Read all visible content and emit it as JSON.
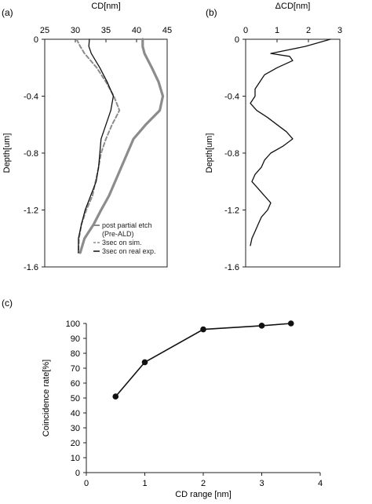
{
  "chart_data": [
    {
      "panel": "(a)",
      "type": "line",
      "xlabel": "CD[nm]",
      "ylabel": "Depth[um]",
      "xlim": [
        25,
        45
      ],
      "ylim": [
        -1.6,
        0
      ],
      "xticks": [
        25,
        30,
        35,
        40,
        45
      ],
      "yticks": [
        0,
        -0.4,
        -0.8,
        -1.2,
        -1.6
      ],
      "yticklabels": [
        "0",
        "-0.4",
        "-0.8",
        "-1.2",
        "-1.6"
      ],
      "grid": false,
      "legend_position": "bottom-right",
      "series": [
        {
          "name": "post partial etch\n(Pre-ALD)",
          "color": "#8c8c8c",
          "style": "solid-thick",
          "points": [
            [
              41.0,
              0.0
            ],
            [
              41.0,
              -0.05
            ],
            [
              41.3,
              -0.1
            ],
            [
              42.5,
              -0.2
            ],
            [
              43.6,
              -0.3
            ],
            [
              44.3,
              -0.4
            ],
            [
              43.8,
              -0.5
            ],
            [
              41.5,
              -0.6
            ],
            [
              39.5,
              -0.7
            ],
            [
              38.5,
              -0.8
            ],
            [
              37.5,
              -0.9
            ],
            [
              36.5,
              -1.0
            ],
            [
              35.5,
              -1.1
            ],
            [
              34.2,
              -1.2
            ],
            [
              33.0,
              -1.3
            ],
            [
              31.5,
              -1.4
            ],
            [
              30.8,
              -1.5
            ]
          ]
        },
        {
          "name": "3sec on sim.",
          "color": "#8c8c8c",
          "style": "dashed",
          "points": [
            [
              30.2,
              0.0
            ],
            [
              30.8,
              -0.05
            ],
            [
              31.5,
              -0.1
            ],
            [
              33.5,
              -0.2
            ],
            [
              35.0,
              -0.3
            ],
            [
              36.3,
              -0.4
            ],
            [
              37.2,
              -0.5
            ],
            [
              36.0,
              -0.6
            ],
            [
              35.0,
              -0.7
            ],
            [
              34.2,
              -0.8
            ],
            [
              33.8,
              -0.9
            ],
            [
              33.3,
              -1.0
            ],
            [
              32.8,
              -1.1
            ],
            [
              31.8,
              -1.2
            ],
            [
              31.0,
              -1.3
            ],
            [
              30.6,
              -1.4
            ],
            [
              30.5,
              -1.5
            ]
          ]
        },
        {
          "name": "3sec on real exp.",
          "color": "#111111",
          "style": "solid",
          "points": [
            [
              32.3,
              0.0
            ],
            [
              32.2,
              -0.05
            ],
            [
              32.6,
              -0.1
            ],
            [
              34.0,
              -0.2
            ],
            [
              35.2,
              -0.3
            ],
            [
              36.2,
              -0.4
            ],
            [
              35.8,
              -0.5
            ],
            [
              35.0,
              -0.6
            ],
            [
              34.2,
              -0.7
            ],
            [
              34.0,
              -0.8
            ],
            [
              33.8,
              -0.9
            ],
            [
              33.4,
              -1.0
            ],
            [
              32.5,
              -1.1
            ],
            [
              31.6,
              -1.2
            ],
            [
              31.0,
              -1.3
            ],
            [
              30.5,
              -1.4
            ],
            [
              30.5,
              -1.5
            ]
          ]
        }
      ]
    },
    {
      "panel": "(b)",
      "type": "line",
      "xlabel": "ΔCD[nm]",
      "ylabel": "Depth[um]",
      "xlim": [
        0,
        3
      ],
      "ylim": [
        -1.6,
        0
      ],
      "xticks": [
        0,
        1,
        2,
        3
      ],
      "yticks": [
        0,
        -0.4,
        -0.8,
        -1.2,
        -1.6
      ],
      "yticklabels": [
        "0",
        "-0.4",
        "-0.8",
        "-1.2",
        "-1.6"
      ],
      "grid": false,
      "series": [
        {
          "color": "#111111",
          "points": [
            [
              2.7,
              0.0
            ],
            [
              1.9,
              -0.05
            ],
            [
              0.8,
              -0.1
            ],
            [
              1.4,
              -0.12
            ],
            [
              1.5,
              -0.15
            ],
            [
              1.0,
              -0.2
            ],
            [
              0.6,
              -0.25
            ],
            [
              0.45,
              -0.3
            ],
            [
              0.3,
              -0.35
            ],
            [
              0.3,
              -0.4
            ],
            [
              0.15,
              -0.45
            ],
            [
              0.35,
              -0.5
            ],
            [
              0.7,
              -0.55
            ],
            [
              1.0,
              -0.6
            ],
            [
              1.3,
              -0.65
            ],
            [
              1.5,
              -0.7
            ],
            [
              1.2,
              -0.75
            ],
            [
              0.8,
              -0.8
            ],
            [
              0.6,
              -0.85
            ],
            [
              0.5,
              -0.9
            ],
            [
              0.3,
              -0.95
            ],
            [
              0.2,
              -1.0
            ],
            [
              0.4,
              -1.05
            ],
            [
              0.6,
              -1.1
            ],
            [
              0.8,
              -1.15
            ],
            [
              0.7,
              -1.2
            ],
            [
              0.5,
              -1.25
            ],
            [
              0.4,
              -1.3
            ],
            [
              0.3,
              -1.35
            ],
            [
              0.2,
              -1.4
            ],
            [
              0.15,
              -1.45
            ]
          ]
        }
      ]
    },
    {
      "panel": "(c)",
      "type": "line",
      "xlabel": "CD range [nm]",
      "ylabel": "Coincidence rate[%]",
      "xlim": [
        0,
        4
      ],
      "ylim": [
        0,
        100
      ],
      "xticks": [
        0,
        1,
        2,
        3,
        4
      ],
      "yticks": [
        0,
        10,
        20,
        30,
        40,
        50,
        60,
        70,
        80,
        90,
        100
      ],
      "grid": false,
      "series": [
        {
          "color": "#111111",
          "markers": true,
          "x": [
            0.5,
            1,
            2,
            3,
            3.5
          ],
          "values": [
            51,
            74,
            96,
            98.5,
            100
          ]
        }
      ]
    }
  ]
}
